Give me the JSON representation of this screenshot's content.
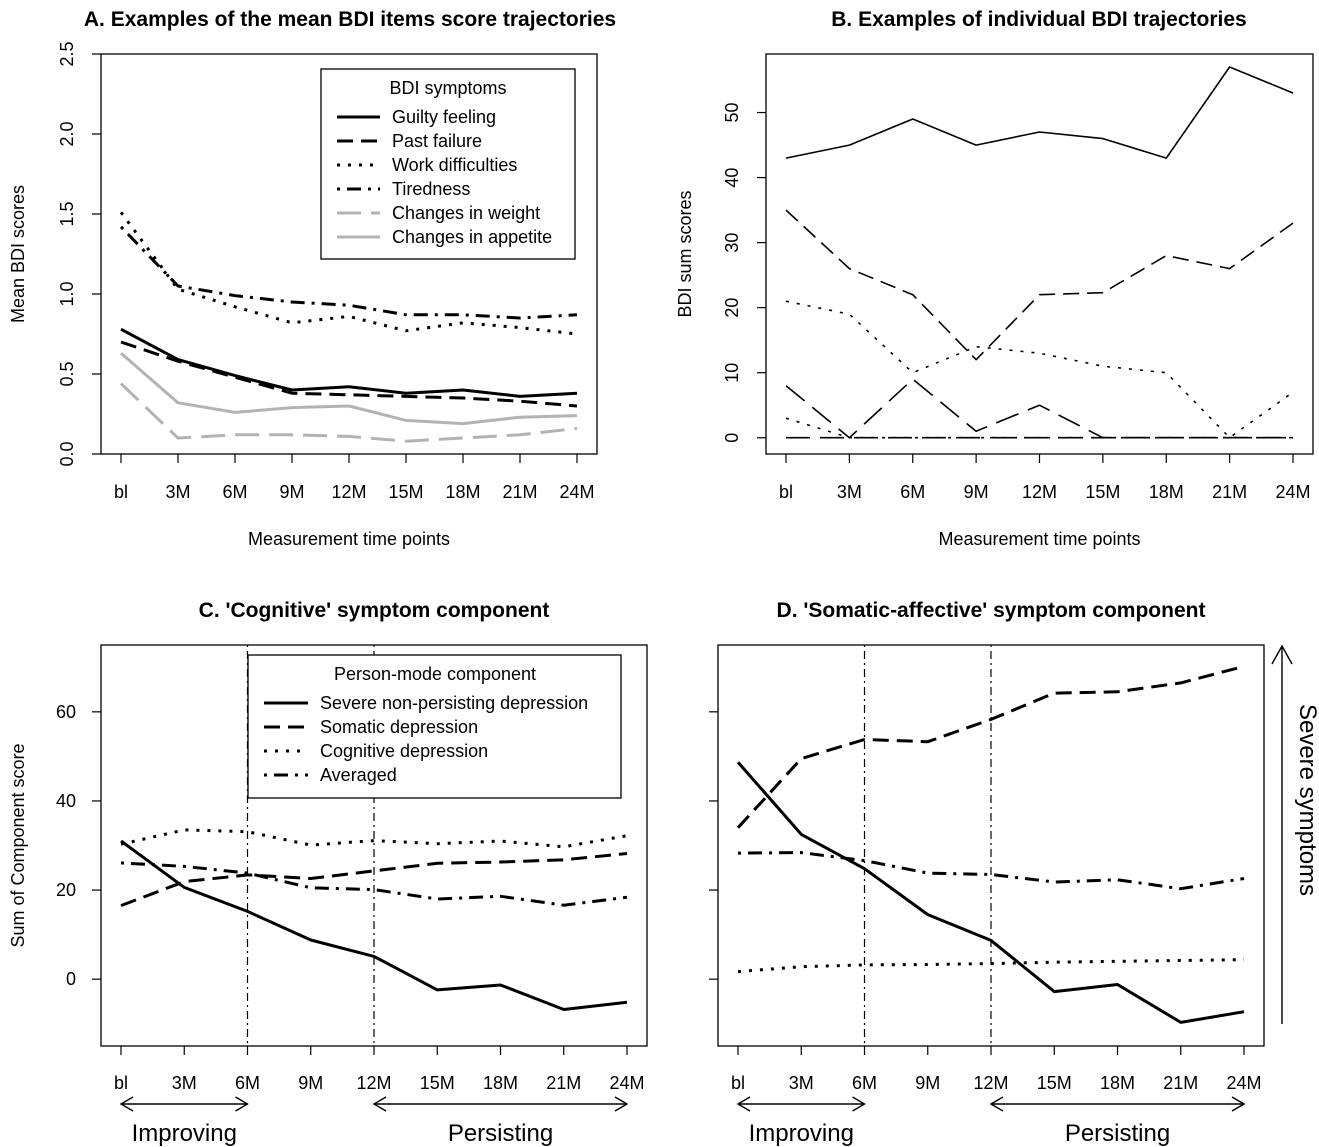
{
  "chart_data": [
    {
      "panel": "A",
      "type": "line",
      "title": "A. Examples of the mean BDI items score trajectories",
      "xlabel": "Measurement time points",
      "ylabel": "Mean BDI scores",
      "categories": [
        "bl",
        "3M",
        "6M",
        "9M",
        "12M",
        "15M",
        "18M",
        "21M",
        "24M"
      ],
      "yticks": [
        "0.0",
        "0.5",
        "1.0",
        "1.5",
        "2.0",
        "2.5"
      ],
      "ylim": [
        0,
        2.5
      ],
      "legend_title": "BDI symptoms",
      "series": [
        {
          "name": "Guilty feeling",
          "color": "#000000",
          "dash": "solid",
          "values": [
            0.78,
            0.59,
            0.49,
            0.4,
            0.42,
            0.38,
            0.4,
            0.36,
            0.38
          ]
        },
        {
          "name": "Past failure",
          "color": "#000000",
          "dash": "dashed",
          "values": [
            0.7,
            0.58,
            0.48,
            0.38,
            0.37,
            0.36,
            0.35,
            0.33,
            0.3
          ]
        },
        {
          "name": "Work difficulties",
          "color": "#000000",
          "dash": "dotted",
          "values": [
            1.51,
            1.03,
            0.92,
            0.82,
            0.86,
            0.77,
            0.82,
            0.79,
            0.75
          ]
        },
        {
          "name": "Tiredness",
          "color": "#000000",
          "dash": "dotdash",
          "values": [
            1.42,
            1.05,
            0.99,
            0.95,
            0.93,
            0.87,
            0.87,
            0.85,
            0.87
          ]
        },
        {
          "name": "Changes in weight",
          "color": "#b3b3b3",
          "dash": "longdash",
          "values": [
            0.44,
            0.1,
            0.12,
            0.12,
            0.11,
            0.08,
            0.1,
            0.12,
            0.16
          ]
        },
        {
          "name": "Changes in appetite",
          "color": "#b3b3b3",
          "dash": "solid",
          "values": [
            0.63,
            0.32,
            0.26,
            0.29,
            0.3,
            0.21,
            0.19,
            0.23,
            0.24
          ]
        }
      ]
    },
    {
      "panel": "B",
      "type": "line",
      "title": "B. Examples of individual BDI trajectories",
      "xlabel": "Measurement time points",
      "ylabel": "BDI sum scores",
      "categories": [
        "bl",
        "3M",
        "6M",
        "9M",
        "12M",
        "15M",
        "18M",
        "21M",
        "24M"
      ],
      "yticks": [
        "0",
        "10",
        "20",
        "30",
        "40",
        "50"
      ],
      "ylim": [
        -2.5,
        59
      ],
      "series": [
        {
          "color": "#000000",
          "dash": "solid",
          "values": [
            43,
            45,
            49,
            45,
            47,
            46,
            43,
            57,
            53
          ]
        },
        {
          "color": "#000000",
          "dash": "dashed",
          "values": [
            35,
            26,
            22,
            12,
            22,
            22.3,
            28,
            26,
            33
          ]
        },
        {
          "color": "#000000",
          "dash": "dotted",
          "values": [
            21,
            19,
            10,
            14,
            13,
            11,
            10,
            0,
            7
          ]
        },
        {
          "color": "#000000",
          "dash": "longdash",
          "values": [
            8,
            0,
            9,
            1,
            5,
            0,
            0,
            0,
            0
          ]
        },
        {
          "color": "#000000",
          "dash": "dotted",
          "values": [
            3,
            0,
            0,
            0,
            0,
            0,
            0,
            0,
            0
          ]
        },
        {
          "color": "#000000",
          "dash": "longdash",
          "values": [
            0,
            0,
            0,
            0,
            0,
            0,
            0,
            0,
            0
          ]
        }
      ]
    },
    {
      "panel": "C",
      "type": "line",
      "title": "C. 'Cognitive' symptom component",
      "xlabel": "",
      "ylabel": "Sum of Component score",
      "categories": [
        "bl",
        "3M",
        "6M",
        "9M",
        "12M",
        "15M",
        "18M",
        "21M",
        "24M"
      ],
      "yticks": [
        "0",
        "20",
        "40",
        "60"
      ],
      "ylim": [
        -15,
        75
      ],
      "legend_title": "Person-mode component",
      "vlines_at": [
        "6M",
        "12M"
      ],
      "arrow_labels": [
        "Improving",
        "Persisting"
      ],
      "series": [
        {
          "name": "Severe non-persisting depression",
          "color": "#000000",
          "dash": "solid",
          "values": [
            31,
            20.6,
            15.2,
            8.8,
            5.1,
            -2.4,
            -1.3,
            -6.8,
            -5.2
          ]
        },
        {
          "name": "Somatic depression",
          "color": "#000000",
          "dash": "dashed",
          "values": [
            16.5,
            21.9,
            23.4,
            22.6,
            24.3,
            26,
            26.3,
            26.8,
            28.2
          ]
        },
        {
          "name": "Cognitive depression",
          "color": "#000000",
          "dash": "dotted",
          "values": [
            30.3,
            33.5,
            33.1,
            30.1,
            31.1,
            30.4,
            31,
            29.7,
            32.2
          ]
        },
        {
          "name": "Averaged",
          "color": "#000000",
          "dash": "dotdash",
          "values": [
            26.1,
            25.3,
            23.8,
            20.5,
            20.1,
            18,
            18.6,
            16.6,
            18.4
          ]
        }
      ]
    },
    {
      "panel": "D",
      "type": "line",
      "title": "D. 'Somatic-affective' symptom component",
      "xlabel": "",
      "ylabel": "",
      "categories": [
        "bl",
        "3M",
        "6M",
        "9M",
        "12M",
        "15M",
        "18M",
        "21M",
        "24M"
      ],
      "ylim": [
        -15,
        75
      ],
      "vlines_at": [
        "6M",
        "12M"
      ],
      "arrow_labels": [
        "Improving",
        "Persisting"
      ],
      "side_label": "Severe symptoms",
      "series": [
        {
          "color": "#000000",
          "dash": "solid",
          "values": [
            48.7,
            32.5,
            24.8,
            14.5,
            8.7,
            -2.8,
            -1.2,
            -9.7,
            -7.3
          ]
        },
        {
          "color": "#000000",
          "dash": "dashed",
          "values": [
            34,
            49.5,
            53.8,
            53.3,
            58.3,
            64.2,
            64.5,
            66.5,
            70.2
          ]
        },
        {
          "color": "#000000",
          "dash": "dotted",
          "values": [
            1.7,
            2.8,
            3.2,
            3.3,
            3.5,
            3.8,
            4,
            4.2,
            4.4
          ]
        },
        {
          "color": "#000000",
          "dash": "dotdash",
          "values": [
            28.3,
            28.4,
            26.6,
            23.8,
            23.5,
            21.8,
            22.3,
            20.3,
            22.6
          ]
        }
      ]
    }
  ]
}
